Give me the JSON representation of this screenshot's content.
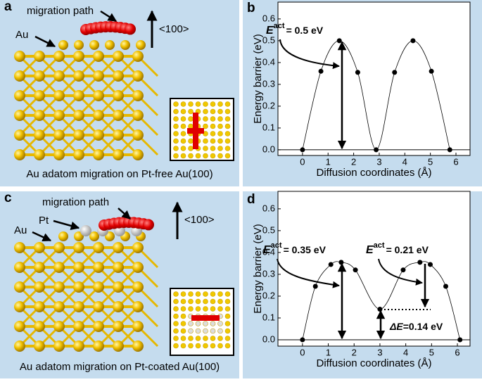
{
  "chart_data": [
    {
      "type": "line",
      "panel": "b",
      "xlabel": "Diffusion coordinates (Å)",
      "ylabel": "Energy barrier (eV)",
      "x": [
        0,
        0.72,
        1.44,
        2.16,
        2.88,
        3.6,
        4.32,
        5.04,
        5.76
      ],
      "series": [
        {
          "color": "#000000",
          "values": [
            0,
            0.36,
            0.5,
            0.355,
            0,
            0.355,
            0.5,
            0.36,
            0
          ]
        }
      ],
      "xlim": [
        -0.96,
        6.55
      ],
      "ylim": [
        -0.026,
        0.677
      ],
      "xticks": [
        0,
        1,
        2,
        3,
        4,
        5,
        6
      ],
      "yticks": [
        {
          "value": 0,
          "label": "0.0"
        },
        {
          "value": 0.1,
          "label": "0.1"
        },
        {
          "value": 0.2,
          "label": "0.2"
        },
        {
          "value": 0.3,
          "label": "0.3"
        },
        {
          "value": 0.4,
          "label": "0.4"
        },
        {
          "value": 0.5,
          "label": "0.5"
        },
        {
          "value": 0.6,
          "label": "0.6"
        }
      ],
      "annotations": [
        {
          "symbol": "E",
          "superscript": "act",
          "text": "= 0.5 eV"
        }
      ]
    },
    {
      "type": "line",
      "panel": "d",
      "xlabel": "Diffusion coordinates (Å)",
      "ylabel": "Energy barrier (eV)",
      "x": [
        0,
        0.5,
        1.1,
        1.5,
        2.05,
        3.0,
        3.9,
        4.55,
        4.95,
        5.55,
        6.1
      ],
      "series": [
        {
          "color": "#000000",
          "values": [
            0,
            0.245,
            0.345,
            0.355,
            0.32,
            0.14,
            0.32,
            0.355,
            0.345,
            0.245,
            0
          ]
        }
      ],
      "xlim": [
        -0.95,
        6.49
      ],
      "ylim": [
        -0.029,
        0.68
      ],
      "xticks": [
        0,
        1,
        2,
        3,
        4,
        5,
        6
      ],
      "yticks": [
        {
          "value": 0,
          "label": "0.0"
        },
        {
          "value": 0.1,
          "label": "0.1"
        },
        {
          "value": 0.2,
          "label": "0.2"
        },
        {
          "value": 0.3,
          "label": "0.3"
        },
        {
          "value": 0.4,
          "label": "0.4"
        },
        {
          "value": 0.5,
          "label": "0.5"
        },
        {
          "value": 0.6,
          "label": "0.6"
        }
      ],
      "annotations": [
        {
          "symbol": "E",
          "superscript": "act",
          "text": "= 0.35 eV"
        },
        {
          "symbol": "E",
          "superscript": "act",
          "text": "= 0.21 eV"
        },
        {
          "symbol": "ΔE",
          "text": "=0.14 eV"
        }
      ]
    }
  ],
  "illustrations": [
    {
      "panel": "a",
      "path_label": "migration path",
      "au_label": "Au",
      "direction": "<100>",
      "caption": "Au adatom migration on Pt-free Au(100)"
    },
    {
      "panel": "c",
      "path_label": "migration path",
      "pt_label": "Pt",
      "au_label": "Au",
      "direction": "<100>",
      "caption": "Au adatom migration on Pt-coated Au(100)"
    }
  ]
}
